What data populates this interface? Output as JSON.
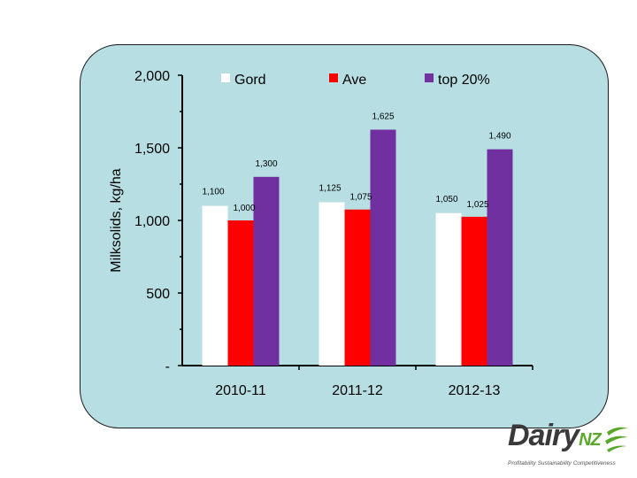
{
  "chart_data": {
    "type": "bar",
    "categories": [
      "2010-11",
      "2011-12",
      "2012-13"
    ],
    "series": [
      {
        "name": "Gord",
        "values": [
          1100,
          1125,
          1050
        ],
        "labels": [
          "1,100",
          "1,125",
          "1,050"
        ],
        "color": "#ffffff"
      },
      {
        "name": "Ave",
        "values": [
          1000,
          1075,
          1025
        ],
        "labels": [
          "1,000",
          "1,075",
          "1,025"
        ],
        "color": "#ff0000"
      },
      {
        "name": "top 20%",
        "values": [
          1300,
          1625,
          1490
        ],
        "labels": [
          "1,300",
          "1,625",
          "1,490"
        ],
        "color": "#7030a0"
      }
    ],
    "ylabel": "Milksolids, kg/ha",
    "ylim": [
      0,
      2000
    ],
    "yticks": [
      0,
      500,
      1000,
      1500,
      2000
    ],
    "ytick_labels": [
      "-",
      "500",
      "1,000",
      "1,500",
      "2,000"
    ],
    "legend_position": "top",
    "grid": false
  },
  "logo": {
    "brand": "Dairy",
    "brand_suffix": "NZ",
    "tagline": "Profitability Sustainability Competitiveness",
    "color": "#5aa829"
  }
}
